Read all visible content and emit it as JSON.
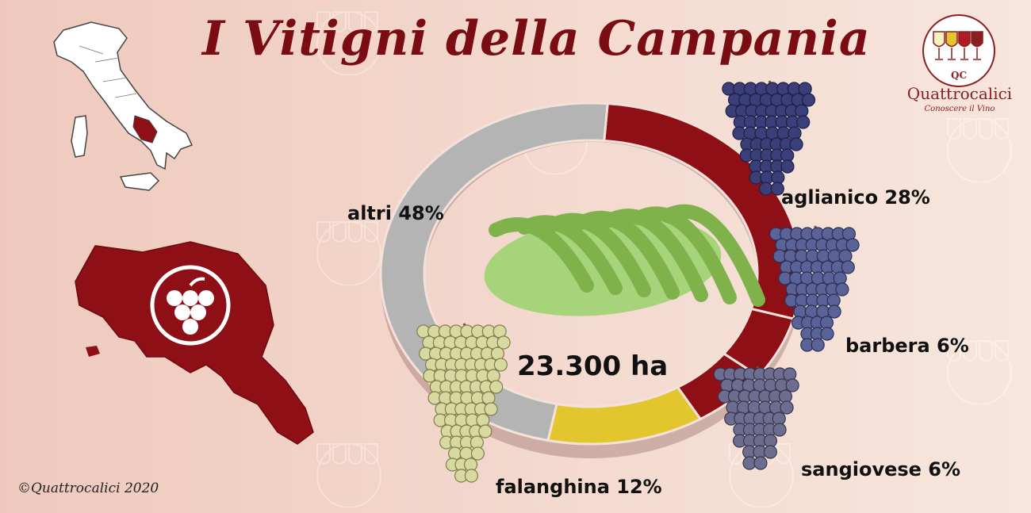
{
  "title": "I Vitigni della Campania",
  "logo": {
    "initials": "QC",
    "name": "Quattrocalici",
    "tagline": "Conoscere il Vino"
  },
  "watermark": {
    "name": "Quattrocalici",
    "tagline": "Conoscere il Vino"
  },
  "copyright": "©Quattrocalici 2020",
  "colors": {
    "aglianico": "#8e1016",
    "barbera": "#8e1016",
    "sangiovese": "#8e1016",
    "falanghina": "#e3c62e",
    "altri": "#b4b4b4",
    "campania_map": "#8e1016",
    "title": "#7a0c14"
  },
  "icons": [
    "italy-map-icon",
    "campania-map-icon",
    "grape-emblem-icon",
    "vineyard-icon",
    "grape-bunch-icon",
    "wine-glasses-logo-icon"
  ],
  "chart_data": {
    "type": "pie",
    "variant": "donut",
    "center_label": "23.300 ha",
    "slices": [
      {
        "label": "aglianico",
        "text": "aglianico 28%",
        "value": 28
      },
      {
        "label": "barbera",
        "text": "barbera 6%",
        "value": 6
      },
      {
        "label": "sangiovese",
        "text": "sangiovese 6%",
        "value": 6
      },
      {
        "label": "falanghina",
        "text": "falanghina 12%",
        "value": 12
      },
      {
        "label": "altri",
        "text": "altri 48%",
        "value": 48
      }
    ]
  }
}
